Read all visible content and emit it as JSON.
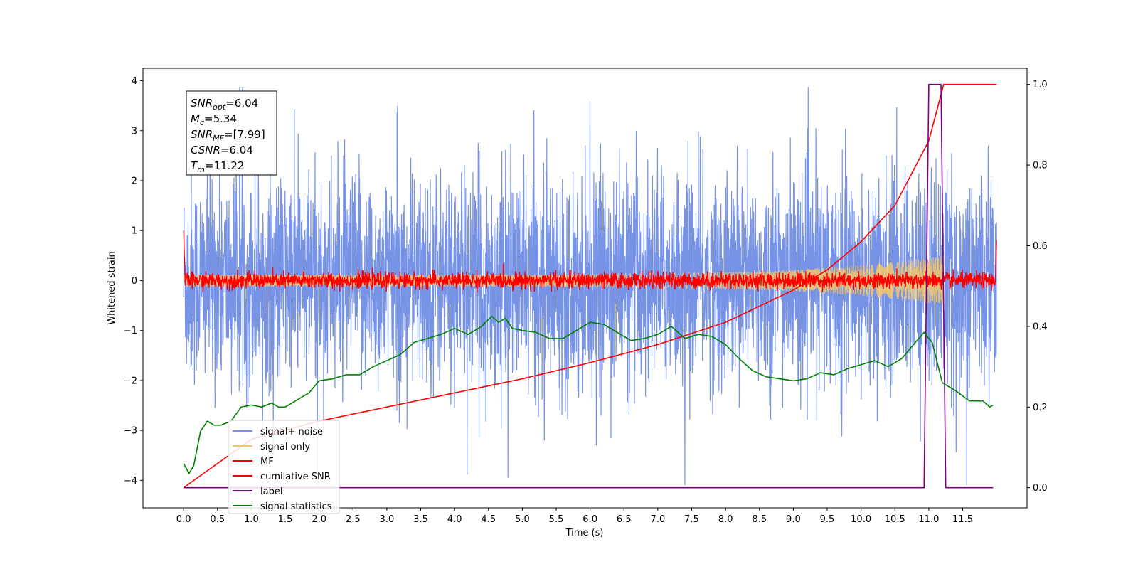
{
  "chart_data": {
    "type": "line",
    "xlabel": "Time (s)",
    "ylabel": "Whitened strain",
    "xlim": [
      -0.6,
      12.45
    ],
    "ylim": [
      -4.55,
      4.25
    ],
    "y2lim": [
      -0.05,
      1.04
    ],
    "x_ticks": [
      "0.0",
      "0.5",
      "1.0",
      "1.5",
      "2.0",
      "2.5",
      "3.0",
      "3.5",
      "4.0",
      "4.5",
      "5.0",
      "5.5",
      "6.0",
      "6.5",
      "7.0",
      "7.5",
      "8.0",
      "8.5",
      "9.0",
      "9.5",
      "10.0",
      "10.5",
      "11.0",
      "11.5"
    ],
    "y_ticks": [
      "−4",
      "−3",
      "−2",
      "−1",
      "0",
      "1",
      "2",
      "3",
      "4"
    ],
    "y2_ticks": [
      "0.0",
      "0.2",
      "0.4",
      "0.6",
      "0.8",
      "1.0"
    ],
    "legend_location": "lower-left",
    "annotation": {
      "lines": [
        {
          "name": "SNR",
          "sub": "opt",
          "value": "=6.04"
        },
        {
          "name": "M",
          "sub": "c",
          "value": "=5.34"
        },
        {
          "name": "SNR",
          "sub": "MF",
          "value": "=[7.99]"
        },
        {
          "name": "CSNR",
          "sub": "",
          "value": "=6.04"
        },
        {
          "name": "T",
          "sub": "m",
          "value": "=11.22"
        }
      ]
    },
    "series": [
      {
        "name": "signal+ noise",
        "color": "#7793e6",
        "axis": "left",
        "description_values": {
          "x_range": [
            0,
            12.0
          ],
          "envelope_low": -2.2,
          "envelope_high": 2.2,
          "peak_max": 3.87,
          "peak_min": -4.1
        }
      },
      {
        "name": "signal only",
        "color": "#f2c56b",
        "axis": "left",
        "chirp": {
          "x_start": 0,
          "x_peak": 11.22,
          "amp_start": 0.12,
          "amp_peak": 0.5
        }
      },
      {
        "name": "MF",
        "color": "#ff0000",
        "axis": "left",
        "description_values": {
          "x_range": [
            0,
            12.0
          ],
          "noise_amp": 0.2,
          "start_value": 1.0,
          "end_value": 0.8
        }
      },
      {
        "name": "cumilative SNR",
        "color": "#ff0000",
        "axis": "right",
        "x": [
          0.0,
          1.0,
          2.0,
          3.0,
          4.0,
          5.0,
          6.0,
          7.0,
          8.0,
          9.0,
          9.5,
          10.0,
          10.5,
          11.0,
          11.22,
          12.0
        ],
        "y": [
          0.0,
          0.12,
          0.165,
          0.2,
          0.235,
          0.27,
          0.31,
          0.355,
          0.41,
          0.49,
          0.54,
          0.61,
          0.7,
          0.86,
          1.0,
          1.0
        ]
      },
      {
        "name": "label",
        "color": "#800080",
        "axis": "right",
        "x": [
          0.0,
          10.93,
          11.0,
          11.18,
          11.25,
          11.95
        ],
        "y": [
          0.0,
          0.0,
          1.0,
          1.0,
          0.0,
          0.0
        ]
      },
      {
        "name": "signal statistics",
        "color": "#008000",
        "axis": "right",
        "x": [
          0.0,
          0.08,
          0.15,
          0.25,
          0.35,
          0.45,
          0.55,
          0.7,
          0.85,
          1.0,
          1.15,
          1.3,
          1.4,
          1.5,
          1.6,
          1.7,
          1.85,
          2.0,
          2.2,
          2.4,
          2.6,
          2.8,
          3.0,
          3.2,
          3.4,
          3.6,
          3.8,
          4.0,
          4.2,
          4.4,
          4.55,
          4.65,
          4.75,
          4.85,
          5.0,
          5.2,
          5.4,
          5.6,
          5.8,
          6.0,
          6.2,
          6.4,
          6.6,
          6.8,
          7.0,
          7.2,
          7.4,
          7.6,
          7.8,
          8.0,
          8.2,
          8.4,
          8.6,
          8.8,
          9.0,
          9.2,
          9.4,
          9.6,
          9.8,
          10.0,
          10.2,
          10.4,
          10.6,
          10.8,
          10.93,
          11.05,
          11.2,
          11.4,
          11.6,
          11.8,
          11.9,
          11.95
        ],
        "y": [
          0.06,
          0.035,
          0.055,
          0.14,
          0.165,
          0.155,
          0.155,
          0.165,
          0.2,
          0.205,
          0.2,
          0.21,
          0.2,
          0.2,
          0.21,
          0.22,
          0.235,
          0.265,
          0.27,
          0.28,
          0.28,
          0.3,
          0.315,
          0.33,
          0.36,
          0.37,
          0.38,
          0.395,
          0.38,
          0.4,
          0.425,
          0.41,
          0.42,
          0.395,
          0.39,
          0.385,
          0.37,
          0.37,
          0.39,
          0.41,
          0.405,
          0.385,
          0.365,
          0.37,
          0.38,
          0.4,
          0.37,
          0.38,
          0.375,
          0.355,
          0.32,
          0.29,
          0.275,
          0.27,
          0.265,
          0.27,
          0.285,
          0.28,
          0.295,
          0.305,
          0.315,
          0.3,
          0.32,
          0.36,
          0.385,
          0.36,
          0.26,
          0.24,
          0.215,
          0.215,
          0.2,
          0.205
        ]
      }
    ]
  }
}
